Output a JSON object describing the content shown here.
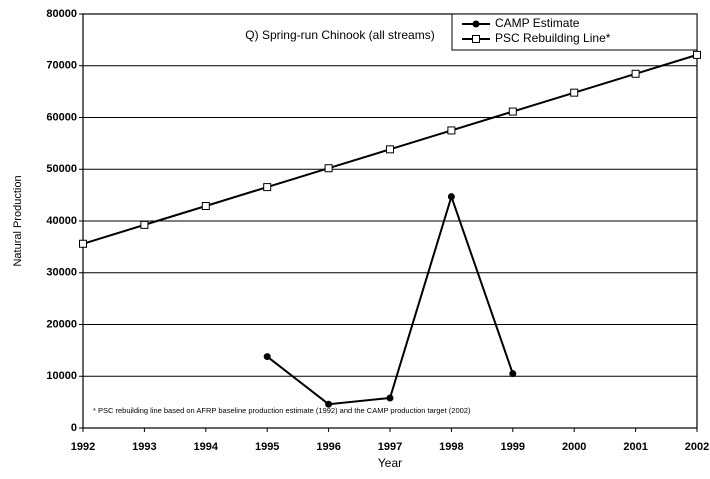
{
  "chart_data": {
    "type": "line",
    "title": "Q) Spring-run Chinook (all streams)",
    "xlabel": "Year",
    "ylabel": "Natural Production",
    "annotation": "* PSC rebuilding line based on AFRP baseline production estimate (1992) and the CAMP production target (2002)",
    "x": [
      1992,
      1993,
      1994,
      1995,
      1996,
      1997,
      1998,
      1999,
      2000,
      2001,
      2002
    ],
    "series": [
      {
        "name": "CAMP Estimate",
        "color": "#000000",
        "marker": "circle",
        "values": [
          null,
          null,
          null,
          13800,
          4600,
          5800,
          44700,
          10500,
          null,
          null,
          null
        ]
      },
      {
        "name": "PSC Rebuilding Line*",
        "color": "#000000",
        "marker": "square",
        "values": [
          35600,
          39250,
          42900,
          46550,
          50200,
          53850,
          57500,
          61150,
          64800,
          68450,
          72100
        ]
      }
    ],
    "xlim": [
      1992,
      2002
    ],
    "xticks": [
      1992,
      1993,
      1994,
      1995,
      1996,
      1997,
      1998,
      1999,
      2000,
      2001,
      2002
    ],
    "ylim": [
      0,
      80000
    ],
    "yticks": [
      0,
      10000,
      20000,
      30000,
      40000,
      50000,
      60000,
      70000,
      80000
    ],
    "grid": true,
    "legend": "top-right"
  }
}
